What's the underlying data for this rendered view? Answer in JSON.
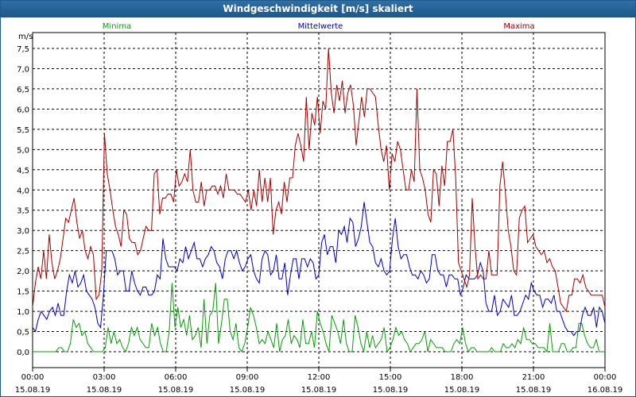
{
  "chart_data": {
    "type": "line",
    "title": "Windgeschwindigkeit [m/s] skaliert",
    "ylabel": "m/s",
    "ylim": [
      0,
      7.5
    ],
    "ytick_values": [
      0,
      0.5,
      1,
      1.5,
      2,
      2.5,
      3,
      3.5,
      4,
      4.5,
      5,
      5.5,
      6,
      6.5,
      7,
      7.5
    ],
    "ytick_labels": [
      "0,0",
      "0,5",
      "1,0",
      "1,5",
      "2,0",
      "2,5",
      "3,0",
      "3,5",
      "4,0",
      "4,5",
      "5,0",
      "5,5",
      "6,0",
      "6,5",
      "7,0",
      "7,5"
    ],
    "xlim": [
      0,
      24
    ],
    "xtick_values": [
      0,
      3,
      6,
      9,
      12,
      15,
      18,
      21,
      24
    ],
    "xtick_times": [
      "00:00",
      "03:00",
      "06:00",
      "09:00",
      "12:00",
      "15:00",
      "18:00",
      "21:00",
      "00:00"
    ],
    "xtick_dates": [
      "15.08.19",
      "15.08.19",
      "15.08.19",
      "15.08.19",
      "15.08.19",
      "15.08.19",
      "15.08.19",
      "15.08.19",
      "16.08.19"
    ],
    "grid": true,
    "series": [
      {
        "name": "Minima",
        "color": "#0a9a0a",
        "values": [
          0,
          0,
          0,
          0,
          0,
          0,
          0,
          0,
          0,
          0.1,
          0.1,
          0,
          0,
          0.2,
          0.8,
          0.6,
          0.7,
          0.4,
          0.5,
          0.2,
          0.1,
          0,
          0,
          0,
          0,
          0.1,
          0.6,
          0.2,
          0.5,
          0.2,
          0.3,
          0.1,
          0,
          0.2,
          0.6,
          0.4,
          0.6,
          0.3,
          0.2,
          0.1,
          0.1,
          0.7,
          0.4,
          0.6,
          0.2,
          0,
          0,
          0.5,
          1.7,
          0.6,
          1.1,
          0.6,
          0.8,
          0.4,
          0.9,
          0.3,
          0.4,
          0.6,
          0.1,
          1.3,
          0.2,
          0.9,
          1.0,
          1.7,
          0.2,
          0.7,
          1.3,
          1.3,
          0.5,
          0.3,
          0.7,
          0.1,
          0,
          0.2,
          0.6,
          1.1,
          0.9,
          0.6,
          0.2,
          0.3,
          0.2,
          0.5,
          0.3,
          0.1,
          0.7,
          0,
          0.3,
          0.4,
          0.8,
          0.2,
          0.4,
          0.3,
          0.1,
          0.8,
          0.2,
          0.2,
          0.5,
          0.1,
          1.0,
          0.7,
          0.5,
          0.2,
          0,
          0.9,
          0.7,
          0.5,
          0.2,
          0.8,
          0.2,
          0,
          0,
          0.9,
          0.6,
          0.2,
          0,
          0.5,
          0.1,
          0.4,
          0.1,
          0.2,
          0.3,
          0.6,
          0,
          0.1,
          0.3,
          0.6,
          0.4,
          0.5,
          0.3,
          0.2,
          0,
          0.1,
          0.2,
          0.2,
          0.3,
          0.5,
          0,
          0.3,
          0.2,
          0.1,
          0.1,
          0.1,
          0,
          0,
          0,
          0.2,
          0.3,
          0.2,
          0.6,
          0.2,
          0,
          0.1,
          0.1,
          0,
          0,
          0,
          0,
          0,
          0.1,
          0,
          0,
          0,
          0.2,
          0.1,
          0.1,
          0.2,
          0.1,
          0.3,
          0.2,
          0.6,
          0.3,
          0.3,
          0.2,
          0.2,
          0.1,
          0.1,
          0.1,
          0,
          0.7,
          0,
          0,
          0,
          0.2,
          0.2,
          0,
          0,
          0.1,
          0.1,
          0.7,
          0.7,
          0.4,
          0.2,
          0.1,
          0.1,
          0.3,
          0,
          0,
          0
        ]
      },
      {
        "name": "Mittelwerte",
        "color": "#0000b4",
        "values": [
          0.6,
          0.5,
          0.8,
          1.0,
          0.9,
          0.8,
          1.0,
          1.1,
          0.9,
          1.2,
          0.9,
          0.9,
          1.5,
          1.9,
          1.7,
          2.0,
          1.6,
          1.7,
          1.9,
          1.5,
          1.4,
          1.3,
          1.1,
          0.7,
          0.6,
          1.4,
          2.5,
          2.5,
          2.5,
          2.3,
          1.9,
          2.0,
          2.0,
          1.5,
          1.5,
          2.0,
          1.7,
          1.5,
          1.4,
          1.6,
          1.6,
          1.4,
          1.4,
          1.5,
          1.9,
          1.8,
          2.8,
          2.3,
          2.1,
          2.1,
          2.1,
          2.0,
          2.3,
          2.2,
          2.6,
          2.3,
          2.5,
          2.7,
          2.3,
          2.3,
          2.1,
          2.3,
          2.4,
          2.6,
          2.5,
          2.2,
          2.1,
          1.8,
          2.3,
          2.5,
          2.5,
          2.3,
          2.5,
          2.2,
          2.0,
          2.1,
          2.3,
          2.4,
          2.0,
          1.8,
          1.7,
          2.3,
          2.5,
          2.4,
          1.9,
          2.0,
          2.4,
          1.8,
          1.8,
          2.2,
          1.4,
          1.9,
          2.3,
          2.3,
          1.8,
          2.3,
          2.3,
          2.1,
          2.3,
          2.2,
          1.8,
          1.9,
          2.7,
          2.9,
          2.4,
          2.6,
          2.6,
          2.2,
          3.0,
          2.9,
          3.1,
          2.7,
          3.3,
          3.2,
          2.6,
          2.8,
          3.1,
          3.7,
          3.2,
          2.7,
          2.6,
          2.2,
          2.1,
          2.3,
          2.0,
          1.9,
          2.0,
          2.8,
          3.3,
          2.6,
          2.3,
          2.4,
          2.4,
          2.1,
          1.9,
          1.9,
          1.8,
          2.0,
          1.9,
          1.7,
          1.8,
          2.4,
          2.4,
          2.0,
          1.9,
          1.9,
          1.6,
          1.9,
          1.9,
          1.8,
          1.8,
          1.4,
          1.6,
          1.9,
          1.8,
          1.8,
          1.8,
          1.9,
          2.2,
          2.0,
          1.2,
          1.0,
          1.0,
          1.4,
          0.9,
          1.0,
          1.3,
          1.2,
          1.1,
          1.4,
          0.9,
          0.9,
          1.0,
          1.2,
          1.4,
          1.3,
          1.7,
          1.5,
          1.4,
          1.4,
          1.1,
          1.3,
          1.3,
          1.2,
          1.4,
          1.0,
          1.0,
          0.8,
          0.6,
          0.5,
          0.5,
          0.4,
          0.5,
          0.5,
          0.9,
          1.1,
          0.9,
          0.9,
          1.1,
          0.6,
          1.1,
          1.0,
          0.7
        ]
      },
      {
        "name": "Maxima",
        "color": "#a00000",
        "values": [
          1.1,
          1.7,
          2.1,
          1.8,
          2.5,
          1.8,
          2.9,
          2.2,
          1.8,
          2.0,
          2.3,
          2.8,
          3.3,
          3.2,
          3.5,
          3.8,
          3.2,
          2.8,
          3.0,
          2.5,
          2.3,
          2.6,
          2.4,
          1.3,
          1.4,
          2.0,
          5.4,
          4.4,
          4.0,
          3.5,
          3.1,
          2.9,
          2.6,
          3.5,
          3.4,
          2.8,
          2.7,
          2.7,
          2.4,
          2.5,
          2.8,
          3.1,
          3.0,
          3.0,
          4.4,
          4.5,
          3.4,
          3.8,
          3.8,
          3.9,
          3.9,
          3.7,
          4.5,
          4.1,
          4.2,
          4.4,
          4.2,
          5.0,
          4.0,
          3.7,
          3.7,
          4.2,
          3.6,
          4.0,
          4.0,
          4.1,
          4.1,
          3.9,
          4.1,
          3.8,
          4.4,
          4.0,
          4.0,
          4.0,
          3.9,
          3.9,
          3.8,
          3.7,
          4.0,
          3.5,
          4.0,
          3.6,
          4.5,
          3.7,
          4.3,
          3.7,
          4.3,
          2.9,
          3.5,
          3.7,
          3.4,
          4.2,
          3.7,
          4.3,
          4.3,
          5.1,
          5.4,
          5.1,
          4.7,
          6.3,
          5.0,
          5.9,
          5.6,
          6.3,
          5.4,
          6.2,
          6.0,
          7.5,
          6.4,
          5.9,
          6.6,
          6.2,
          6.7,
          5.9,
          6.4,
          6.6,
          6.1,
          5.1,
          5.7,
          6.3,
          5.8,
          6.5,
          6.5,
          6.4,
          6.3,
          5.6,
          5.0,
          4.7,
          5.1,
          4.0,
          4.9,
          4.7,
          5.2,
          5.0,
          4.5,
          4.0,
          4.0,
          4.5,
          4.2,
          6.5,
          4.5,
          4.3,
          4.0,
          3.4,
          3.2,
          4.5,
          4.4,
          3.6,
          4.6,
          4.1,
          5.2,
          5.2,
          5.5,
          4.3,
          2.2,
          2.0,
          1.8,
          1.6,
          1.9,
          3.8,
          2.6,
          1.8,
          1.9,
          1.8,
          1.8,
          2.5,
          1.9,
          1.9,
          1.9,
          4.1,
          4.7,
          3.9,
          3.0,
          2.6,
          2.0,
          1.9,
          3.3,
          3.5,
          3.6,
          2.7,
          2.8,
          2.9,
          2.6,
          2.5,
          2.4,
          2.5,
          2.2,
          2.3,
          2.1,
          2.0,
          1.6,
          1.2,
          1.1,
          1.0,
          1.4,
          1.4,
          1.8,
          1.8,
          1.7,
          1.9,
          1.6,
          1.5,
          1.4,
          1.4,
          1.4,
          1.4,
          1.4,
          1.1
        ]
      }
    ]
  }
}
